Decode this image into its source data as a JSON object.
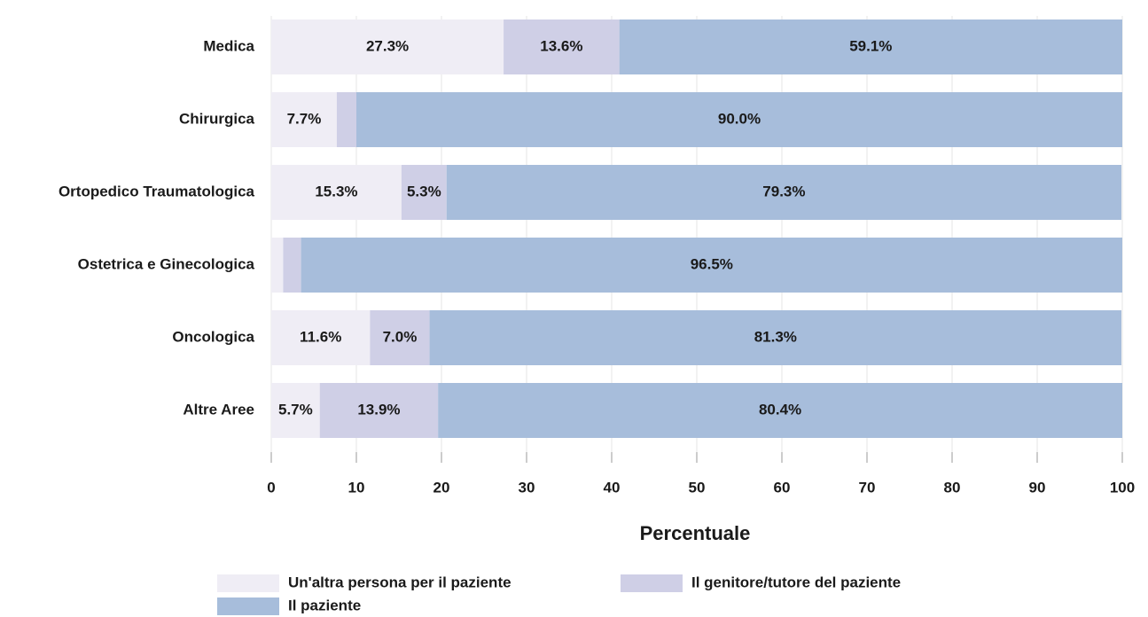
{
  "chart_data": {
    "type": "bar",
    "orientation": "horizontal",
    "stacked": true,
    "categories": [
      "Medica",
      "Chirurgica",
      "Ortopedico Traumatologica",
      "Ostetrica e Ginecologica",
      "Oncologica",
      "Altre Aree"
    ],
    "series": [
      {
        "name": "Un'altra persona per il paziente",
        "color": "#efedf5",
        "values": [
          27.3,
          7.7,
          15.3,
          1.4,
          11.6,
          5.7
        ],
        "value_labels": [
          "27.3%",
          "7.7%",
          "15.3%",
          null,
          "11.6%",
          "5.7%"
        ]
      },
      {
        "name": "Il genitore/tutore del paziente",
        "color": "#cfcfe6",
        "values": [
          13.6,
          2.3,
          5.3,
          2.1,
          7.0,
          13.9
        ],
        "value_labels": [
          "13.6%",
          null,
          "5.3%",
          null,
          "7.0%",
          "13.9%"
        ]
      },
      {
        "name": "Il paziente",
        "color": "#a7bddb",
        "values": [
          59.1,
          90.0,
          79.3,
          96.5,
          81.3,
          80.4
        ],
        "value_labels": [
          "59.1%",
          "90.0%",
          "79.3%",
          "96.5%",
          "81.3%",
          "80.4%"
        ]
      }
    ],
    "xlabel": "Percentuale",
    "xlim": [
      0,
      100
    ],
    "xticks": [
      0,
      10,
      20,
      30,
      40,
      50,
      60,
      70,
      80,
      90,
      100
    ],
    "grid": true
  }
}
